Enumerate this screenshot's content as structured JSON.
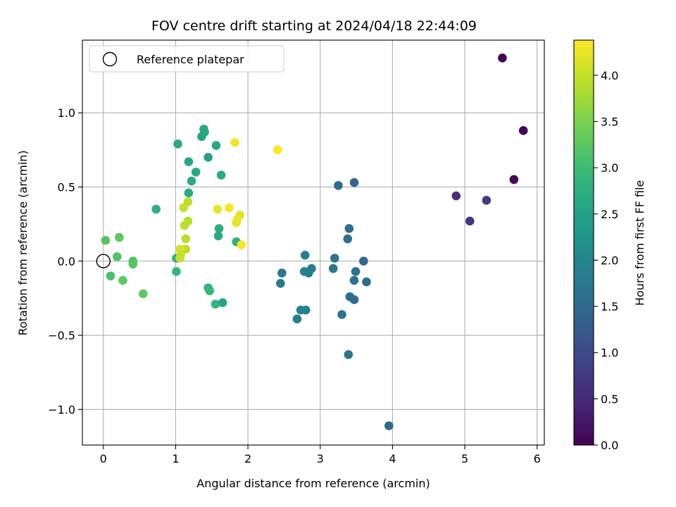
{
  "chart_data": {
    "type": "scatter",
    "title": "FOV centre drift starting at 2024/04/18 22:44:09",
    "xlabel": "Angular distance from reference (arcmin)",
    "ylabel": "Rotation from reference (arcmin)",
    "xlim": [
      -0.29,
      6.1
    ],
    "ylim": [
      -1.24,
      1.49
    ],
    "xticks": [
      0,
      1,
      2,
      3,
      4,
      5,
      6
    ],
    "xtick_labels": [
      "0",
      "1",
      "2",
      "3",
      "4",
      "5",
      "6"
    ],
    "yticks": [
      -1.0,
      -0.5,
      0.0,
      0.5,
      1.0
    ],
    "ytick_labels": [
      "−1.0",
      "−0.5",
      "0.0",
      "0.5",
      "1.0"
    ],
    "grid": true,
    "legend": {
      "placement": "top-left",
      "entries": [
        "Reference platepar"
      ]
    },
    "reference_point": {
      "x": 0,
      "y": 0
    },
    "colorbar": {
      "label": "Hours from first FF file",
      "colormap": "viridis",
      "range": [
        0.0,
        4.38
      ],
      "ticks": [
        0.0,
        0.5,
        1.0,
        1.5,
        2.0,
        2.5,
        3.0,
        3.5,
        4.0
      ],
      "tick_labels": [
        "0.0",
        "0.5",
        "1.0",
        "1.5",
        "2.0",
        "2.5",
        "3.0",
        "3.5",
        "4.0"
      ]
    },
    "viridis_stops": [
      "#440154",
      "#482878",
      "#3e4989",
      "#31688e",
      "#26828e",
      "#1f9e89",
      "#35b779",
      "#6ece58",
      "#b5de2b",
      "#fde725"
    ],
    "points": [
      {
        "x": 5.52,
        "y": 1.37,
        "c": 0.02
      },
      {
        "x": 5.81,
        "y": 0.88,
        "c": 0.05
      },
      {
        "x": 5.68,
        "y": 0.55,
        "c": 0.1
      },
      {
        "x": 4.88,
        "y": 0.44,
        "c": 0.6
      },
      {
        "x": 5.3,
        "y": 0.41,
        "c": 0.78
      },
      {
        "x": 5.07,
        "y": 0.27,
        "c": 0.7
      },
      {
        "x": 3.47,
        "y": 0.53,
        "c": 1.45
      },
      {
        "x": 3.25,
        "y": 0.51,
        "c": 1.55
      },
      {
        "x": 3.4,
        "y": 0.22,
        "c": 1.62
      },
      {
        "x": 3.38,
        "y": 0.15,
        "c": 1.6
      },
      {
        "x": 3.6,
        "y": 0.0,
        "c": 1.5
      },
      {
        "x": 3.2,
        "y": 0.02,
        "c": 1.75
      },
      {
        "x": 3.18,
        "y": -0.05,
        "c": 1.72
      },
      {
        "x": 3.49,
        "y": -0.07,
        "c": 1.66
      },
      {
        "x": 3.64,
        "y": -0.14,
        "c": 1.58
      },
      {
        "x": 3.47,
        "y": -0.13,
        "c": 1.63
      },
      {
        "x": 3.41,
        "y": -0.24,
        "c": 1.6
      },
      {
        "x": 3.47,
        "y": -0.26,
        "c": 1.55
      },
      {
        "x": 3.3,
        "y": -0.36,
        "c": 1.65
      },
      {
        "x": 3.39,
        "y": -0.63,
        "c": 1.7
      },
      {
        "x": 3.95,
        "y": -1.11,
        "c": 1.52
      },
      {
        "x": 2.79,
        "y": 0.04,
        "c": 1.9
      },
      {
        "x": 2.78,
        "y": -0.07,
        "c": 1.92
      },
      {
        "x": 2.88,
        "y": -0.05,
        "c": 1.87
      },
      {
        "x": 2.84,
        "y": -0.08,
        "c": 1.85
      },
      {
        "x": 2.47,
        "y": -0.08,
        "c": 1.8
      },
      {
        "x": 2.45,
        "y": -0.15,
        "c": 1.82
      },
      {
        "x": 2.73,
        "y": -0.33,
        "c": 1.95
      },
      {
        "x": 2.8,
        "y": -0.33,
        "c": 1.9
      },
      {
        "x": 2.68,
        "y": -0.39,
        "c": 1.85
      },
      {
        "x": 1.39,
        "y": 0.89,
        "c": 2.62
      },
      {
        "x": 1.4,
        "y": 0.87,
        "c": 2.6
      },
      {
        "x": 1.36,
        "y": 0.84,
        "c": 2.55
      },
      {
        "x": 1.03,
        "y": 0.79,
        "c": 2.65
      },
      {
        "x": 1.56,
        "y": 0.78,
        "c": 2.6
      },
      {
        "x": 1.45,
        "y": 0.7,
        "c": 2.52
      },
      {
        "x": 1.18,
        "y": 0.67,
        "c": 2.58
      },
      {
        "x": 1.28,
        "y": 0.6,
        "c": 2.65
      },
      {
        "x": 1.63,
        "y": 0.58,
        "c": 2.7
      },
      {
        "x": 1.22,
        "y": 0.54,
        "c": 2.7
      },
      {
        "x": 1.18,
        "y": 0.46,
        "c": 2.68
      },
      {
        "x": 0.73,
        "y": 0.35,
        "c": 2.78
      },
      {
        "x": 1.6,
        "y": 0.22,
        "c": 2.72
      },
      {
        "x": 1.59,
        "y": 0.17,
        "c": 2.68
      },
      {
        "x": 1.84,
        "y": 0.13,
        "c": 2.8
      },
      {
        "x": 1.01,
        "y": 0.02,
        "c": 2.85
      },
      {
        "x": 1.45,
        "y": -0.18,
        "c": 2.88
      },
      {
        "x": 1.47,
        "y": -0.2,
        "c": 2.92
      },
      {
        "x": 1.55,
        "y": -0.29,
        "c": 2.9
      },
      {
        "x": 1.65,
        "y": -0.28,
        "c": 2.58
      },
      {
        "x": 1.01,
        "y": -0.07,
        "c": 2.9
      },
      {
        "x": 0.03,
        "y": 0.14,
        "c": 3.2
      },
      {
        "x": 0.22,
        "y": 0.16,
        "c": 3.25
      },
      {
        "x": 0.19,
        "y": 0.03,
        "c": 3.15
      },
      {
        "x": 0.41,
        "y": 0.0,
        "c": 3.18
      },
      {
        "x": 0.41,
        "y": -0.02,
        "c": 3.22
      },
      {
        "x": 0.1,
        "y": -0.1,
        "c": 3.1
      },
      {
        "x": 0.27,
        "y": -0.13,
        "c": 3.25
      },
      {
        "x": 0.55,
        "y": -0.22,
        "c": 3.28
      },
      {
        "x": 1.82,
        "y": 0.8,
        "c": 4.3
      },
      {
        "x": 2.41,
        "y": 0.75,
        "c": 4.38
      },
      {
        "x": 1.58,
        "y": 0.35,
        "c": 4.25
      },
      {
        "x": 1.74,
        "y": 0.36,
        "c": 4.35
      },
      {
        "x": 1.89,
        "y": 0.31,
        "c": 4.2
      },
      {
        "x": 1.85,
        "y": 0.28,
        "c": 4.28
      },
      {
        "x": 1.84,
        "y": 0.26,
        "c": 4.22
      },
      {
        "x": 1.91,
        "y": 0.11,
        "c": 4.35
      },
      {
        "x": 1.17,
        "y": 0.4,
        "c": 3.92
      },
      {
        "x": 1.11,
        "y": 0.36,
        "c": 4.0
      },
      {
        "x": 1.17,
        "y": 0.27,
        "c": 3.88
      },
      {
        "x": 1.12,
        "y": 0.24,
        "c": 3.95
      },
      {
        "x": 1.14,
        "y": 0.15,
        "c": 3.9
      },
      {
        "x": 1.14,
        "y": 0.08,
        "c": 3.95
      },
      {
        "x": 1.06,
        "y": 0.08,
        "c": 4.1
      },
      {
        "x": 1.07,
        "y": 0.04,
        "c": 4.05
      },
      {
        "x": 1.06,
        "y": 0.02,
        "c": 4.0
      }
    ]
  }
}
